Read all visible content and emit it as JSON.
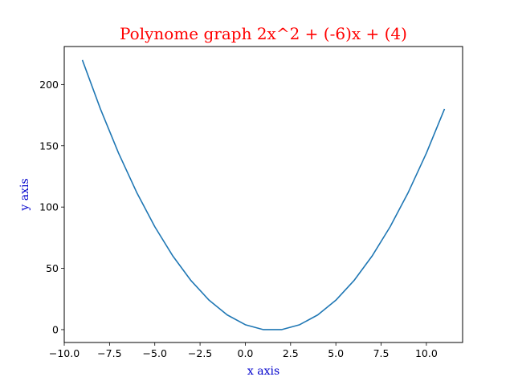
{
  "chart_data": {
    "type": "line",
    "title": "Polynome graph 2x^2 + (-6)x + (4)",
    "xlabel": "x axis",
    "ylabel": "y axis",
    "xlim": [
      -10.0,
      12.0
    ],
    "ylim": [
      -10.5,
      231.0
    ],
    "xticks": [
      -10.0,
      -7.5,
      -5.0,
      -2.5,
      0.0,
      2.5,
      5.0,
      7.5,
      10.0
    ],
    "xtick_labels": [
      "−10.0",
      "−7.5",
      "−5.0",
      "−2.5",
      "0.0",
      "2.5",
      "5.0",
      "7.5",
      "10.0"
    ],
    "yticks": [
      0,
      50,
      100,
      150,
      200
    ],
    "ytick_labels": [
      "0",
      "50",
      "100",
      "150",
      "200"
    ],
    "grid": false,
    "series": [
      {
        "color": "#1f77b4",
        "x": [
          -9,
          -8,
          -7,
          -6,
          -5,
          -4,
          -3,
          -2,
          -1,
          0,
          1,
          2,
          3,
          4,
          5,
          6,
          7,
          8,
          9,
          10,
          11
        ],
        "y": [
          220,
          180,
          144,
          112,
          84,
          60,
          40,
          24,
          12,
          4,
          0,
          0,
          4,
          12,
          24,
          40,
          60,
          84,
          112,
          144,
          180
        ]
      }
    ],
    "colors": {
      "title": "#ff0000",
      "axis_labels": "#0000cc",
      "axes": "#000000"
    }
  }
}
